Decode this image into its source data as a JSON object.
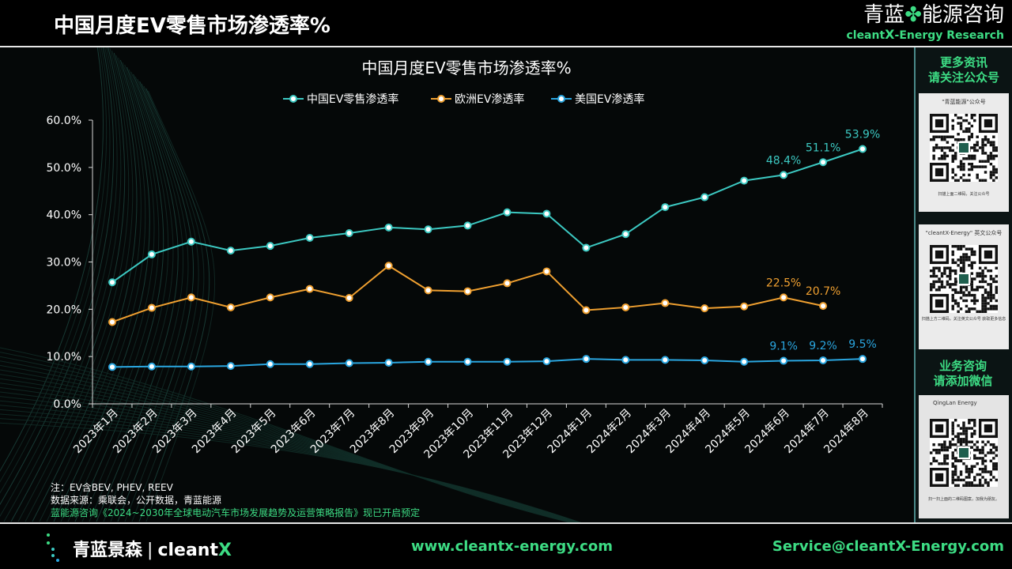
{
  "header": {
    "title": "中国月度EV零售市场渗透率%"
  },
  "brand": {
    "cn_left": "青蓝",
    "cn_right": "能源咨询",
    "en_prefix": "cleant",
    "en_x": "X",
    "en_suffix": "-Energy Research"
  },
  "colors": {
    "china": "#3cc9c2",
    "europe": "#f0a030",
    "usa": "#2aa6e0",
    "accent": "#3ddc84"
  },
  "chart_data": {
    "type": "line",
    "title": "中国月度EV零售市场渗透率%",
    "categories": [
      "2023年1月",
      "2023年2月",
      "2023年3月",
      "2023年4月",
      "2023年5月",
      "2023年6月",
      "2023年7月",
      "2023年8月",
      "2023年9月",
      "2023年10月",
      "2023年11月",
      "2023年12月",
      "2024年1月",
      "2024年2月",
      "2024年3月",
      "2024年4月",
      "2024年5月",
      "2024年6月",
      "2024年7月",
      "2024年8月"
    ],
    "ylim": [
      0,
      0.6
    ],
    "yticks": [
      "0.0%",
      "10.0%",
      "20.0%",
      "30.0%",
      "40.0%",
      "50.0%",
      "60.0%"
    ],
    "legend_position": "top",
    "grid": false,
    "series": [
      {
        "name": "中国EV零售渗透率",
        "color": "#3cc9c2",
        "values": [
          0.257,
          0.316,
          0.343,
          0.324,
          0.334,
          0.351,
          0.361,
          0.373,
          0.369,
          0.377,
          0.405,
          0.402,
          0.33,
          0.359,
          0.416,
          0.437,
          0.472,
          0.484,
          0.511,
          0.539
        ],
        "labels": [
          [
            17,
            "48.4%"
          ],
          [
            18,
            "51.1%"
          ],
          [
            19,
            "53.9%"
          ]
        ]
      },
      {
        "name": "欧洲EV渗透率",
        "color": "#f0a030",
        "values": [
          0.173,
          0.203,
          0.225,
          0.204,
          0.225,
          0.243,
          0.224,
          0.292,
          0.24,
          0.238,
          0.255,
          0.28,
          0.198,
          0.204,
          0.213,
          0.202,
          0.206,
          0.225,
          0.207,
          null
        ],
        "labels": [
          [
            17,
            "22.5%"
          ],
          [
            18,
            "20.7%"
          ]
        ]
      },
      {
        "name": "美国EV渗透率",
        "color": "#2aa6e0",
        "values": [
          0.078,
          0.079,
          0.079,
          0.08,
          0.084,
          0.084,
          0.086,
          0.087,
          0.089,
          0.089,
          0.089,
          0.09,
          0.095,
          0.093,
          0.093,
          0.092,
          0.089,
          0.091,
          0.092,
          0.095
        ],
        "labels": [
          [
            17,
            "9.1%"
          ],
          [
            18,
            "9.2%"
          ],
          [
            19,
            "9.5%"
          ]
        ]
      }
    ]
  },
  "notes": {
    "line1": "注：EV含BEV, PHEV, REEV",
    "line2": "数据来源：乘联会，公开数据，青蓝能源",
    "line3": "蓝能源咨询《2024~2030年全球电动汽车市场发展趋势及运营策略报告》现已开启预定"
  },
  "sidebar": {
    "top_line1": "更多资讯",
    "top_line2": "请关注公众号",
    "qr1_caption": "\"青蓝能源\"公众号",
    "qr1_sub": "扫描上面二维码，关注公众号",
    "qr2_caption": "\"cleantX-Energy\" 英文公众号",
    "qr2_sub": "扫描上方二维码，关注英文公众号 获取更多信息",
    "mid_line1": "业务咨询",
    "mid_line2": "请添加微信",
    "qr3_caption": "QingLan Energy",
    "qr3_sub": "扫一扫上面的二维码图案，加我为朋友。"
  },
  "footer": {
    "logo_cn": "青蓝景森",
    "logo_sep": "|",
    "logo_en": "cleant",
    "logo_x": "X",
    "website": "www.cleantx-energy.com",
    "email": "Service@cleantX-Energy.com"
  }
}
